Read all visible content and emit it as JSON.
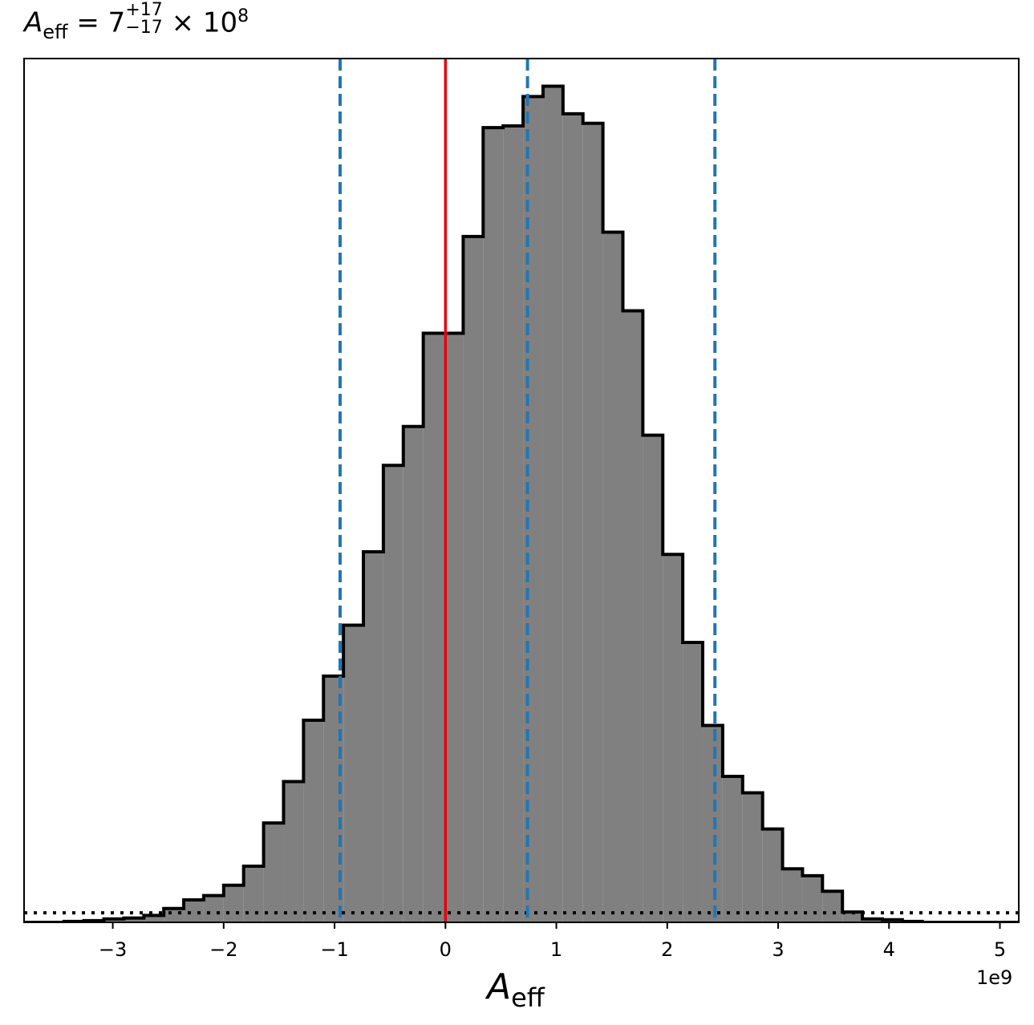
{
  "title": {
    "symbol": "A",
    "symbol_sub": "eff",
    "equals": "= 7",
    "sup": "+17",
    "sub": "−17",
    "tail": "× 10",
    "exp": "8"
  },
  "xlabel": {
    "symbol": "A",
    "sub": "eff"
  },
  "axis_offset": "1e9",
  "colors": {
    "fill": "#808080",
    "outline": "#000000",
    "truth_line": "#e8000b",
    "quantile_lines": "#1f77b4",
    "baseline_dotted": "#000000"
  },
  "chart_data": {
    "type": "histogram",
    "title": "A_eff = 7 (+17, −17) × 10^8",
    "xlabel": "A_eff",
    "x_unit_offset": "1e9",
    "xlim": [
      -3.8,
      5.17
    ],
    "ylim": [
      0,
      1
    ],
    "grid": false,
    "legend": "none",
    "x_ticks": [
      -3,
      -2,
      -1,
      0,
      1,
      2,
      3,
      4,
      5
    ],
    "x_tick_labels": [
      "−3",
      "−2",
      "−1",
      "0",
      "1",
      "2",
      "3",
      "4",
      "5"
    ],
    "bin_edges": [
      -3.8,
      -3.62,
      -3.44,
      -3.26,
      -3.08,
      -2.9,
      -2.72,
      -2.54,
      -2.36,
      -2.18,
      -2.0,
      -1.82,
      -1.64,
      -1.46,
      -1.28,
      -1.1,
      -0.92,
      -0.74,
      -0.56,
      -0.38,
      -0.2,
      -0.02,
      0.16,
      0.34,
      0.52,
      0.7,
      0.88,
      1.06,
      1.24,
      1.42,
      1.6,
      1.78,
      1.96,
      2.14,
      2.32,
      2.5,
      2.68,
      2.86,
      3.04,
      3.22,
      3.4,
      3.58,
      3.76,
      3.94,
      4.12,
      4.3,
      4.48,
      4.66,
      4.84,
      5.02,
      5.17
    ],
    "counts": [
      0.0,
      0.0,
      0.001,
      0.002,
      0.004,
      0.005,
      0.008,
      0.016,
      0.026,
      0.031,
      0.043,
      0.065,
      0.115,
      0.163,
      0.234,
      0.285,
      0.344,
      0.429,
      0.529,
      0.574,
      0.682,
      0.682,
      0.794,
      0.92,
      0.922,
      0.956,
      0.968,
      0.936,
      0.925,
      0.799,
      0.708,
      0.564,
      0.426,
      0.324,
      0.228,
      0.169,
      0.15,
      0.108,
      0.062,
      0.054,
      0.036,
      0.012,
      0.004,
      0.003,
      0.001,
      0.0,
      0.0,
      0.0,
      0.0,
      0.0
    ],
    "vertical_lines": [
      {
        "x": 0.0,
        "style": "solid",
        "color": "#e8000b"
      },
      {
        "x": -0.95,
        "style": "dashed",
        "color": "#1f77b4"
      },
      {
        "x": 0.74,
        "style": "dashed",
        "color": "#1f77b4"
      },
      {
        "x": 2.43,
        "style": "dashed",
        "color": "#1f77b4"
      }
    ],
    "horizontal_lines": [
      {
        "y": 0.011,
        "style": "dotted",
        "color": "#000000"
      }
    ]
  }
}
